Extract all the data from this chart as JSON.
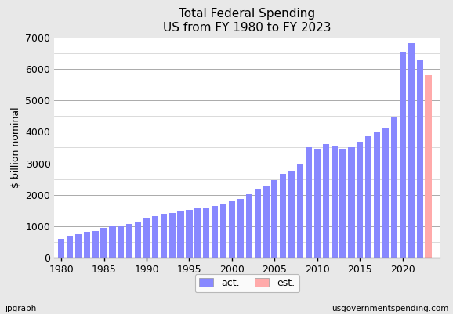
{
  "title_line1": "Total Federal Spending",
  "title_line2": "US from FY 1980 to FY 2023",
  "ylabel": "$ billion nominal",
  "xlabel_bottom_left": "jpgraph",
  "xlabel_bottom_right": "usgovernmentspending.com",
  "ylim": [
    0,
    7000
  ],
  "yticks_major": [
    0,
    1000,
    2000,
    3000,
    4000,
    5000,
    6000,
    7000
  ],
  "yticks_minor": [
    500,
    1500,
    2500,
    3500,
    4500,
    5500,
    6500
  ],
  "bar_color_actual": "#8888ff",
  "bar_color_estimate": "#ffaaaa",
  "background_color": "#e8e8e8",
  "plot_bg_color": "#ffffff",
  "years": [
    1980,
    1981,
    1982,
    1983,
    1984,
    1985,
    1986,
    1987,
    1988,
    1989,
    1990,
    1991,
    1992,
    1993,
    1994,
    1995,
    1996,
    1997,
    1998,
    1999,
    2000,
    2001,
    2002,
    2003,
    2004,
    2005,
    2006,
    2007,
    2008,
    2009,
    2010,
    2011,
    2012,
    2013,
    2014,
    2015,
    2016,
    2017,
    2018,
    2019,
    2020,
    2021,
    2022,
    2023
  ],
  "values": [
    590,
    678,
    745,
    808,
    852,
    946,
    990,
    1004,
    1064,
    1143,
    1253,
    1324,
    1381,
    1409,
    1461,
    1516,
    1561,
    1601,
    1652,
    1702,
    1789,
    1863,
    2011,
    2160,
    2293,
    2472,
    2655,
    2729,
    2983,
    3518,
    3457,
    3603,
    3537,
    3455,
    3506,
    3688,
    3853,
    3982,
    4108,
    4447,
    6552,
    6818,
    6271,
    5800
  ],
  "actual_count": 43,
  "legend_labels": [
    "act.",
    "est."
  ],
  "xtick_years": [
    1980,
    1985,
    1990,
    1995,
    2000,
    2005,
    2010,
    2015,
    2020
  ]
}
